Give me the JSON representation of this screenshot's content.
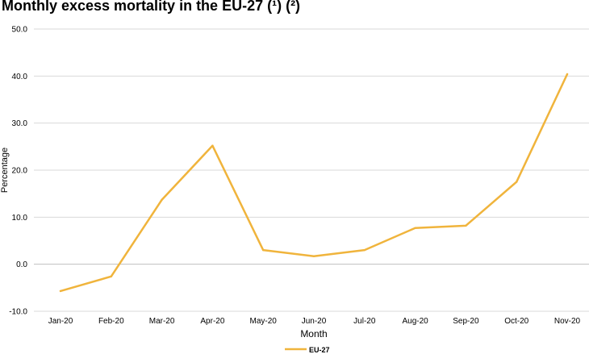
{
  "chart_data": {
    "type": "line",
    "title": "Monthly excess mortality in the EU-27 (¹) (²)",
    "xlabel": "Month",
    "ylabel": "Percentage",
    "categories": [
      "Jan-20",
      "Feb-20",
      "Mar-20",
      "Apr-20",
      "May-20",
      "Jun-20",
      "Jul-20",
      "Aug-20",
      "Sep-20",
      "Oct-20",
      "Nov-20"
    ],
    "series": [
      {
        "name": "EU-27",
        "values": [
          -5.7,
          -2.6,
          13.7,
          25.2,
          3.0,
          1.7,
          3.0,
          7.7,
          8.2,
          17.5,
          40.4
        ],
        "color": "#f0b43c"
      }
    ],
    "ylim": [
      -10,
      50
    ],
    "yticks": [
      -10,
      0,
      10,
      20,
      30,
      40,
      50
    ],
    "ytick_labels": [
      "-10.0",
      "0.0",
      "10.0",
      "20.0",
      "30.0",
      "40.0",
      "50.0"
    ],
    "grid": true,
    "legend_position": "bottom-center",
    "colors": {
      "grid": "#d9d9d9",
      "axis": "#bfbfbf",
      "text": "#000000"
    }
  }
}
